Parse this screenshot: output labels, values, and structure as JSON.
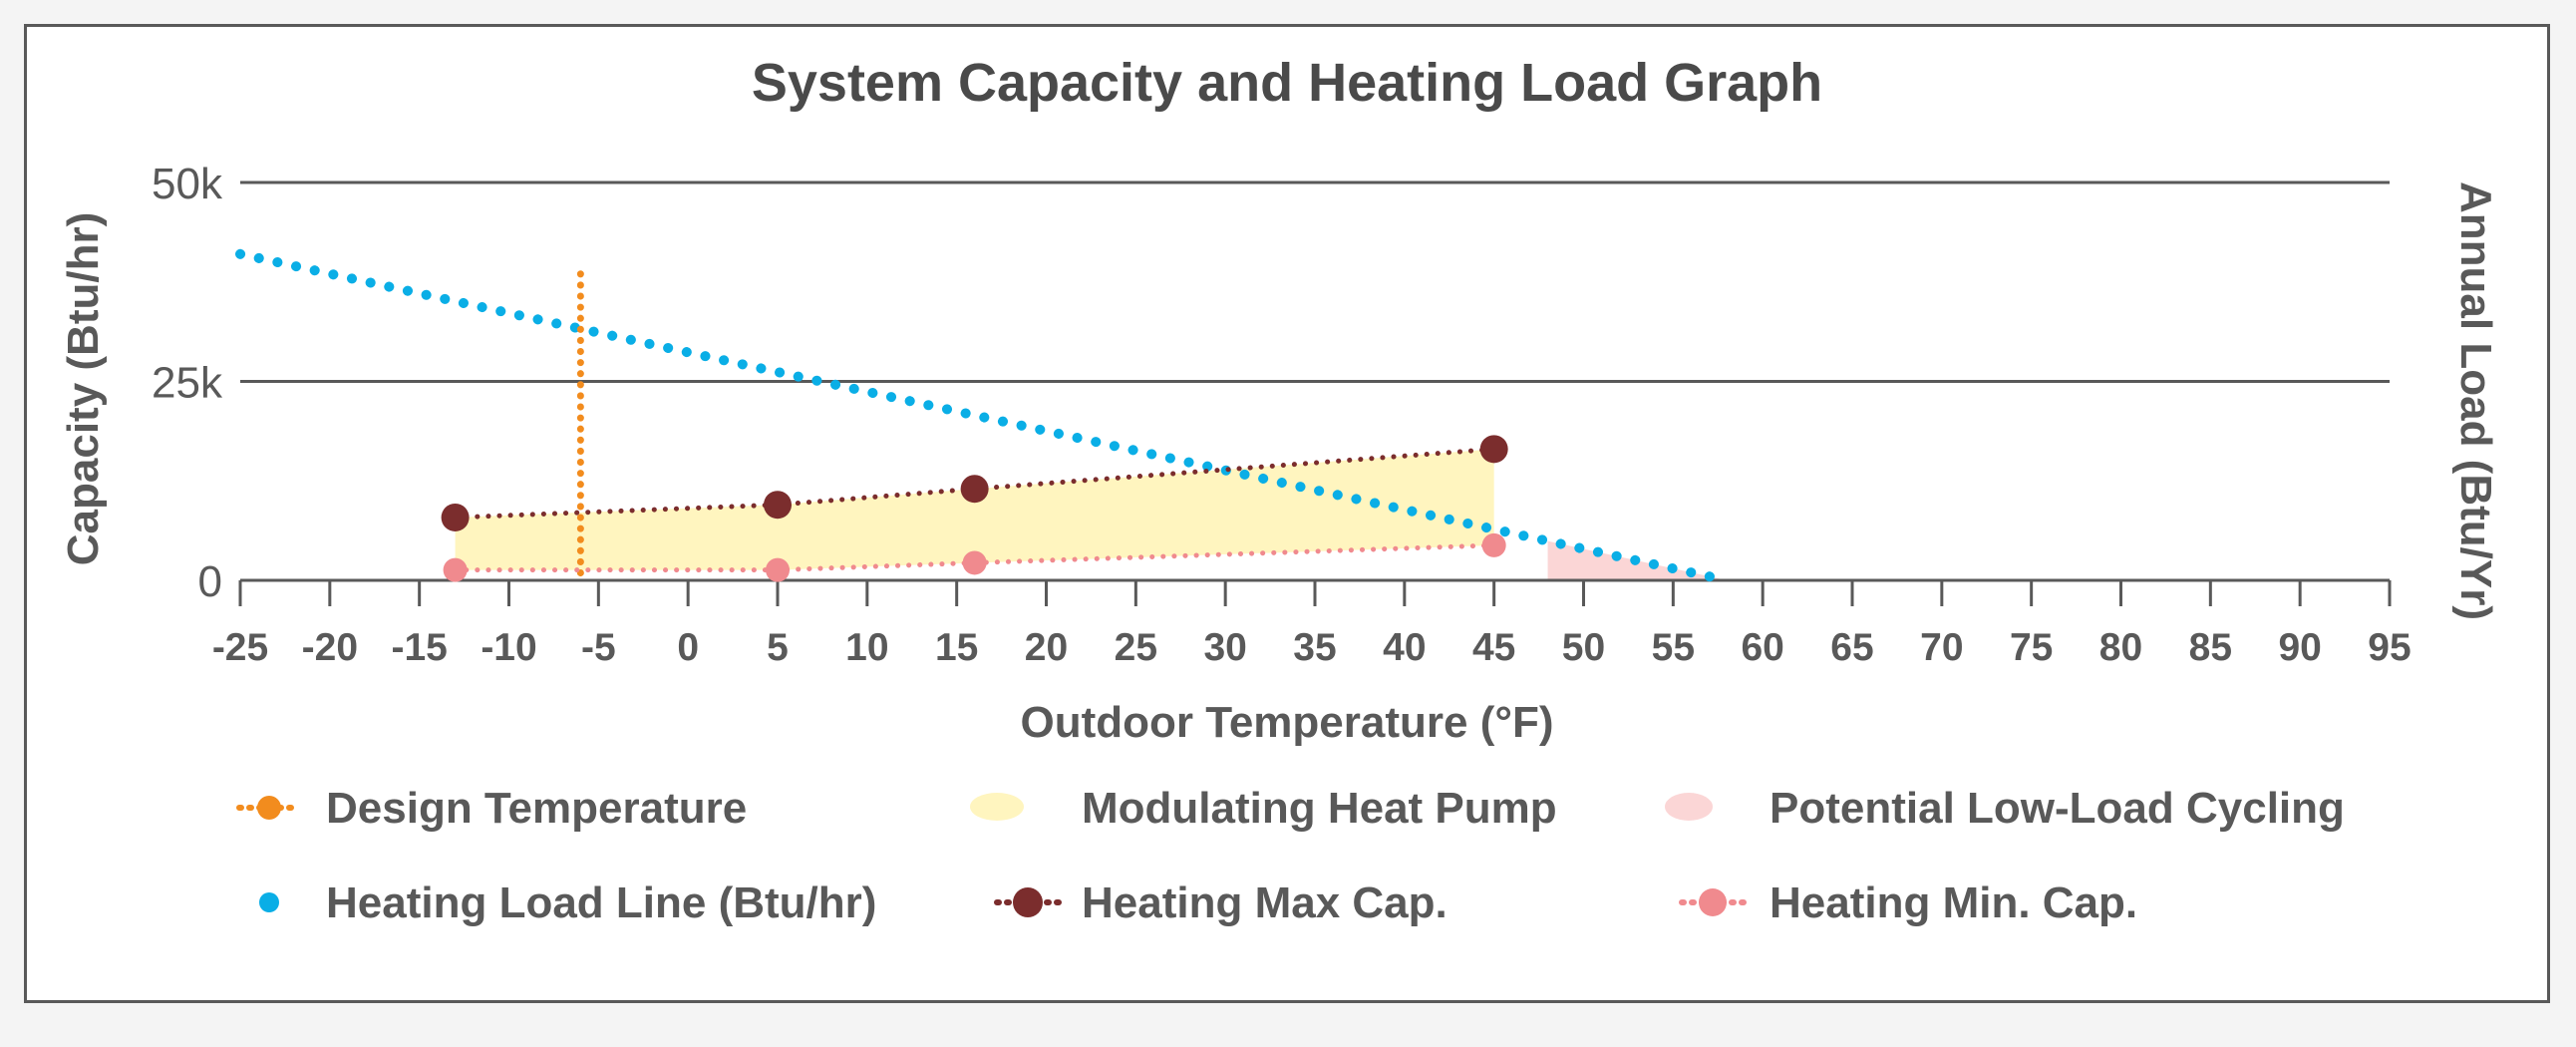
{
  "chart_data": {
    "type": "line",
    "title": "System Capacity and Heating Load Graph",
    "xlabel": "Outdoor Temperature (°F)",
    "ylabel": "Capacity (Btu/hr)",
    "y2label": "Annual Load (Btu/Yr)",
    "xlim": [
      -25,
      95
    ],
    "ylim": [
      0,
      50000
    ],
    "x_ticks": [
      -25,
      -20,
      -15,
      -10,
      -5,
      0,
      5,
      10,
      15,
      20,
      25,
      30,
      35,
      40,
      45,
      50,
      55,
      60,
      65,
      70,
      75,
      80,
      85,
      90,
      95
    ],
    "y_ticks": [
      {
        "value": 0,
        "label": "0"
      },
      {
        "value": 25000,
        "label": "25k"
      },
      {
        "value": 50000,
        "label": "50k"
      }
    ],
    "grid": "horizontal",
    "legend_position": "bottom",
    "design_temperature": {
      "name": "Design Temperature",
      "x": -6,
      "y_range": [
        0,
        38500
      ],
      "color": "#f28c1e"
    },
    "heating_load_line": {
      "name": "Heating Load Line (Btu/hr)",
      "color": "#0aaee6",
      "points": [
        {
          "x": -25,
          "y": 41000
        },
        {
          "x": 58,
          "y": 0
        }
      ]
    },
    "heating_max_capacity": {
      "name": "Heating Max Cap.",
      "color": "#7b2d2d",
      "points": [
        {
          "x": -13,
          "y": 7900
        },
        {
          "x": 5,
          "y": 9500
        },
        {
          "x": 16,
          "y": 11500
        },
        {
          "x": 45,
          "y": 16500
        }
      ]
    },
    "heating_min_capacity": {
      "name": "Heating Min. Cap.",
      "color": "#f08a8e",
      "points": [
        {
          "x": -13,
          "y": 1300
        },
        {
          "x": 5,
          "y": 1300
        },
        {
          "x": 16,
          "y": 2200
        },
        {
          "x": 45,
          "y": 4400
        }
      ]
    },
    "modulating_heat_pump": {
      "name": "Modulating Heat Pump",
      "color": "#fff5bf",
      "x_range": [
        -13,
        45
      ]
    },
    "potential_low_load_cycling": {
      "name": "Potential Low-Load Cycling",
      "color": "#fbd6d6",
      "x_range": [
        48,
        58
      ]
    }
  }
}
